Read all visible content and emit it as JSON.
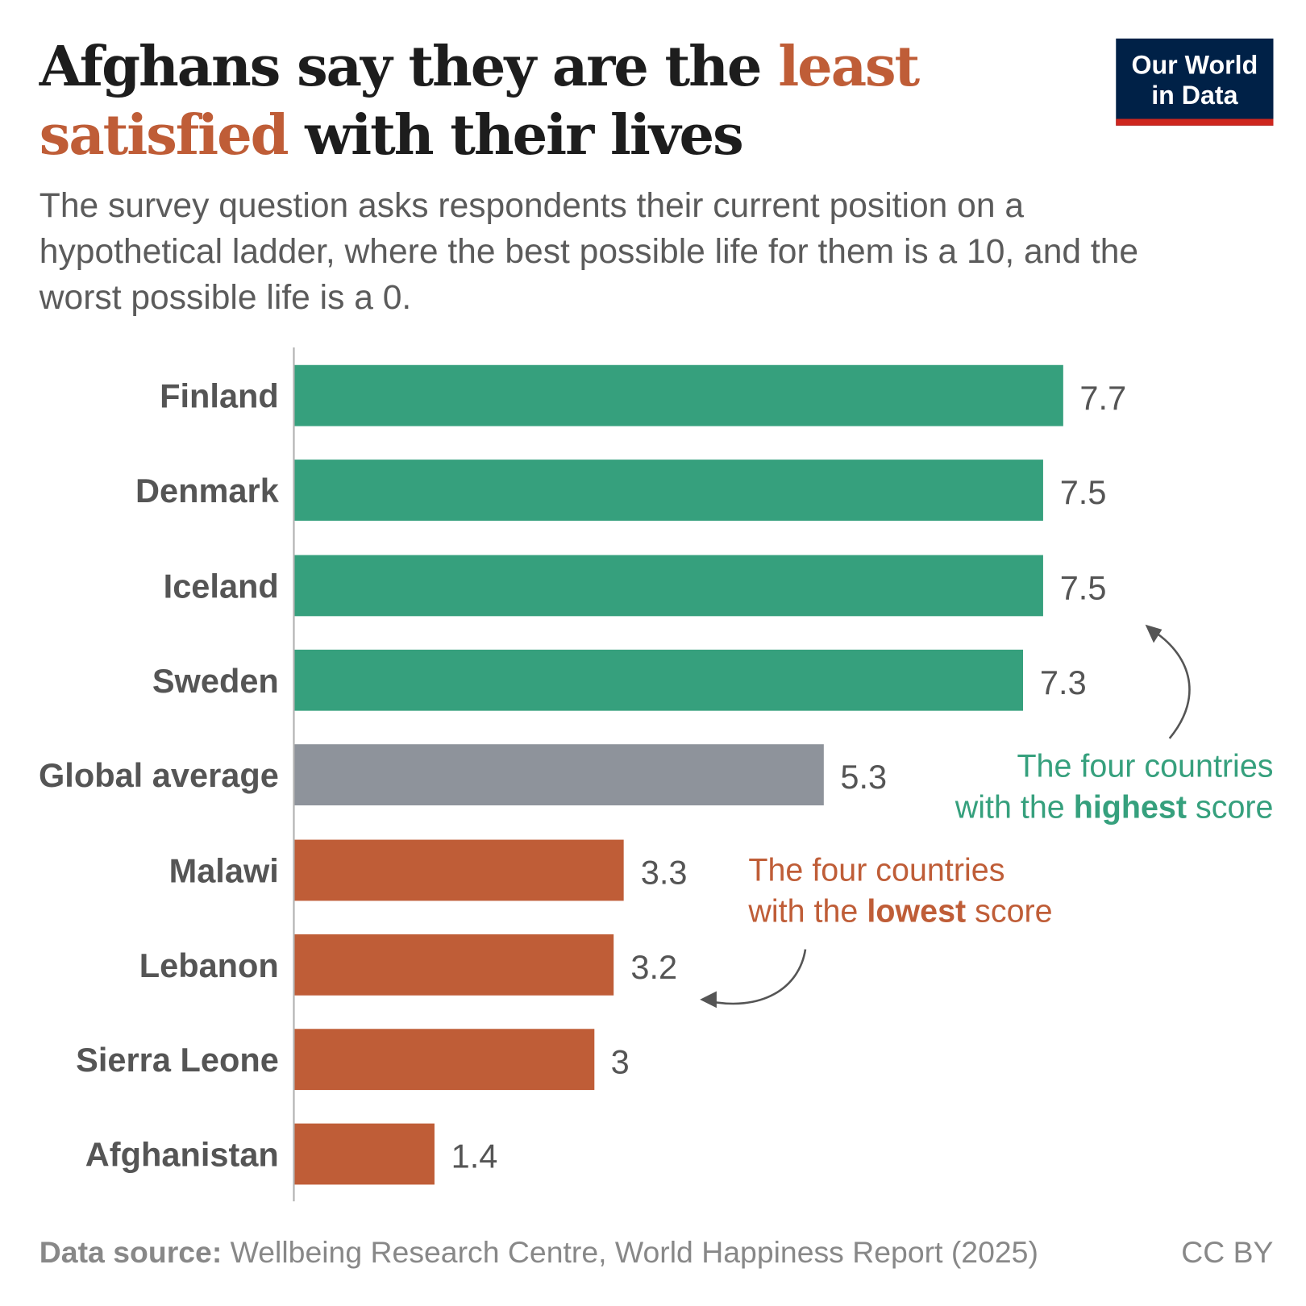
{
  "title": {
    "part1": "Afghans say they are the ",
    "highlight1": "least",
    "highlight2": "satisfied",
    "part2": " with their lives"
  },
  "subtitle": "The survey question asks respondents their current position on a hypothetical ladder, where the best possible life for them is a 10, and the worst possible life is a 0.",
  "logo": {
    "line1": "Our World",
    "line2": "in Data"
  },
  "annotations": {
    "high": {
      "line1": "The four countries",
      "pre": "with the ",
      "bold": "highest",
      "post": " score"
    },
    "low": {
      "line1": "The four countries",
      "pre": "with the ",
      "bold": "lowest",
      "post": " score"
    }
  },
  "footer": {
    "label": "Data source:",
    "source": " Wellbeing Research Centre, World Happiness Report (2025)",
    "license": "CC BY"
  },
  "colors": {
    "highest": "#36a07d",
    "average": "#8e939b",
    "lowest": "#bf5d37",
    "logo_bg": "#002147",
    "logo_bar": "#ce261e"
  },
  "chart_data": {
    "type": "bar",
    "orientation": "horizontal",
    "categories": [
      "Finland",
      "Denmark",
      "Iceland",
      "Sweden",
      "Global average",
      "Malawi",
      "Lebanon",
      "Sierra Leone",
      "Afghanistan"
    ],
    "values": [
      7.7,
      7.5,
      7.5,
      7.3,
      5.3,
      3.3,
      3.2,
      3,
      1.4
    ],
    "value_labels": [
      "7.7",
      "7.5",
      "7.5",
      "7.3",
      "5.3",
      "3.3",
      "3.2",
      "3",
      "1.4"
    ],
    "groups": [
      "highest",
      "highest",
      "highest",
      "highest",
      "average",
      "lowest",
      "lowest",
      "lowest",
      "lowest"
    ],
    "xlim": [
      0,
      10
    ],
    "grid": false,
    "legend": "none"
  }
}
